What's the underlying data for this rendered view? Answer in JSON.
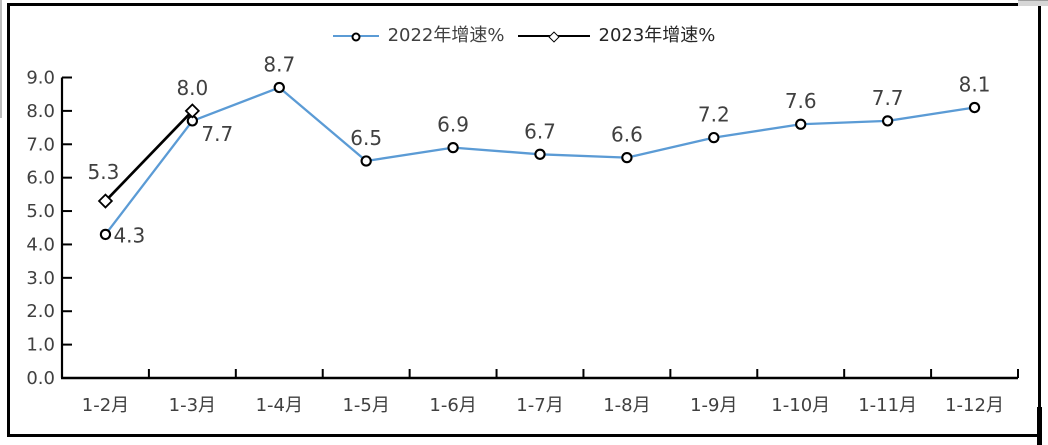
{
  "window": {
    "background": "#ffffff",
    "border_color": "#000000"
  },
  "legend": {
    "position": "top-center",
    "items": [
      {
        "label": "2022年增速%",
        "marker": "circle",
        "line_color": "#5B9BD5",
        "line_length": 46,
        "text_color": "#404040"
      },
      {
        "label": "2023年增速%",
        "marker": "diamond",
        "line_color": "#000000",
        "line_length": 72,
        "text_color": "#262626"
      }
    ]
  },
  "chart_data": {
    "type": "line",
    "title": "",
    "categories": [
      "1-2月",
      "1-3月",
      "1-4月",
      "1-5月",
      "1-6月",
      "1-7月",
      "1-8月",
      "1-9月",
      "1-10月",
      "1-11月",
      "1-12月"
    ],
    "series": [
      {
        "name": "2022年增速%",
        "color": "#5B9BD5",
        "marker": "circle",
        "values": [
          4.3,
          7.7,
          8.7,
          6.5,
          6.9,
          6.7,
          6.6,
          7.2,
          7.6,
          7.7,
          8.1
        ],
        "data_labels": [
          "4.3",
          "7.7",
          "8.7",
          "6.5",
          "6.9",
          "6.7",
          "6.6",
          "7.2",
          "7.6",
          "7.7",
          "8.1"
        ],
        "label_positions": [
          "right",
          "below-right",
          "above",
          "above",
          "above",
          "above",
          "above",
          "above",
          "above",
          "above",
          "above"
        ]
      },
      {
        "name": "2023年增速%",
        "color": "#000000",
        "marker": "diamond",
        "values": [
          5.3,
          8.0,
          null,
          null,
          null,
          null,
          null,
          null,
          null,
          null,
          null
        ],
        "data_labels": [
          "5.3",
          "8.0"
        ],
        "label_positions": [
          "above-left",
          "above"
        ]
      }
    ],
    "xlabel": "",
    "ylabel": "",
    "ylim": [
      0,
      9
    ],
    "ytick_step": 1.0,
    "ytick_labels": [
      "0.0",
      "1.0",
      "2.0",
      "3.0",
      "4.0",
      "5.0",
      "6.0",
      "7.0",
      "8.0",
      "9.0"
    ],
    "grid": false,
    "legend_position": "top",
    "axis_color": "#000000",
    "tick_label_color": "#404040",
    "data_label_color": "#404040"
  }
}
